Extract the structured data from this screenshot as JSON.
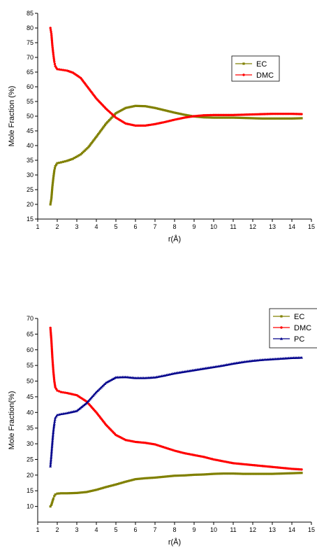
{
  "chart_data": [
    {
      "type": "line",
      "xlabel": "r(Å)",
      "ylabel": "Mole Fraction (%)",
      "xlim": [
        1,
        15
      ],
      "ylim": [
        15,
        85
      ],
      "xticks": [
        "1",
        "2",
        "3",
        "4",
        "5",
        "6",
        "7",
        "8",
        "9",
        "10",
        "11",
        "12",
        "13",
        "14",
        "15"
      ],
      "yticks": [
        "15",
        "20",
        "25",
        "30",
        "35",
        "40",
        "45",
        "50",
        "55",
        "60",
        "65",
        "70",
        "75",
        "80",
        "85"
      ],
      "legend": {
        "position": "top-right"
      },
      "series": [
        {
          "name": "EC",
          "color": "#808000",
          "marker": "square",
          "x": [
            1.65,
            1.7,
            1.75,
            1.8,
            1.85,
            1.9,
            2.0,
            2.2,
            2.5,
            2.8,
            3.2,
            3.6,
            4.0,
            4.5,
            5.0,
            5.5,
            6.0,
            6.5,
            7.0,
            7.5,
            8.0,
            8.5,
            9.0,
            9.5,
            10.0,
            10.5,
            11.0,
            11.5,
            12.0,
            12.5,
            13.0,
            13.5,
            14.0,
            14.5
          ],
          "y": [
            20,
            22,
            26,
            29,
            31.5,
            33,
            34,
            34.3,
            34.8,
            35.5,
            37,
            39.5,
            43,
            47.5,
            51,
            52.8,
            53.5,
            53.4,
            52.8,
            52,
            51.2,
            50.5,
            49.9,
            49.6,
            49.5,
            49.5,
            49.5,
            49.4,
            49.3,
            49.2,
            49.2,
            49.2,
            49.2,
            49.3
          ]
        },
        {
          "name": "DMC",
          "color": "#ff0000",
          "marker": "circle",
          "x": [
            1.65,
            1.7,
            1.75,
            1.8,
            1.85,
            1.9,
            2.0,
            2.2,
            2.5,
            2.8,
            3.2,
            3.6,
            4.0,
            4.5,
            5.0,
            5.5,
            6.0,
            6.5,
            7.0,
            7.5,
            8.0,
            8.5,
            9.0,
            9.5,
            10.0,
            10.5,
            11.0,
            11.5,
            12.0,
            12.5,
            13.0,
            13.5,
            14.0,
            14.5
          ],
          "y": [
            80,
            78,
            74,
            71,
            68.5,
            67,
            66,
            65.8,
            65.5,
            64.8,
            63,
            59.5,
            56,
            52.5,
            49.5,
            47.5,
            46.8,
            46.8,
            47.3,
            48,
            48.8,
            49.5,
            50,
            50.3,
            50.4,
            50.4,
            50.4,
            50.5,
            50.6,
            50.7,
            50.8,
            50.8,
            50.8,
            50.7
          ]
        }
      ]
    },
    {
      "type": "line",
      "xlabel": "r(Å)",
      "ylabel": "Mole Fraction(%)",
      "xlim": [
        1,
        15
      ],
      "ylim": [
        5,
        70
      ],
      "xticks": [
        "1",
        "2",
        "3",
        "4",
        "5",
        "6",
        "7",
        "8",
        "9",
        "10",
        "11",
        "12",
        "13",
        "14",
        "15"
      ],
      "yticks": [
        "10",
        "15",
        "20",
        "25",
        "30",
        "35",
        "40",
        "45",
        "50",
        "55",
        "60",
        "65",
        "70"
      ],
      "legend": {
        "position": "top-right"
      },
      "series": [
        {
          "name": "EC",
          "color": "#808000",
          "marker": "square",
          "x": [
            1.65,
            1.7,
            1.75,
            1.8,
            1.85,
            1.9,
            2.0,
            2.2,
            2.5,
            3.0,
            3.5,
            4.0,
            4.5,
            5.0,
            5.5,
            6.0,
            6.5,
            7.0,
            7.5,
            8.0,
            8.5,
            9.0,
            9.5,
            10.0,
            10.5,
            11.0,
            11.5,
            12.0,
            12.5,
            13.0,
            13.5,
            14.0,
            14.5
          ],
          "y": [
            10,
            10.5,
            11.5,
            12.5,
            13.3,
            13.8,
            14.1,
            14.2,
            14.2,
            14.3,
            14.6,
            15.3,
            16.2,
            17,
            17.9,
            18.7,
            19,
            19.2,
            19.5,
            19.8,
            19.9,
            20.1,
            20.2,
            20.4,
            20.5,
            20.5,
            20.4,
            20.4,
            20.4,
            20.4,
            20.5,
            20.6,
            20.7
          ]
        },
        {
          "name": "DMC",
          "color": "#ff0000",
          "marker": "circle",
          "x": [
            1.65,
            1.7,
            1.75,
            1.8,
            1.85,
            1.9,
            2.0,
            2.2,
            2.5,
            3.0,
            3.5,
            4.0,
            4.5,
            5.0,
            5.5,
            6.0,
            6.5,
            7.0,
            7.5,
            8.0,
            8.5,
            9.0,
            9.5,
            10.0,
            10.5,
            11.0,
            11.5,
            12.0,
            12.5,
            13.0,
            13.5,
            14.0,
            14.5
          ],
          "y": [
            67,
            63,
            57.5,
            53.2,
            50,
            48,
            47,
            46.5,
            46.2,
            45.5,
            43.5,
            40,
            36,
            32.8,
            31.2,
            30.6,
            30.3,
            29.8,
            28.8,
            27.8,
            27,
            26.4,
            25.8,
            25,
            24.4,
            23.8,
            23.5,
            23.2,
            22.9,
            22.6,
            22.3,
            22,
            21.8
          ]
        },
        {
          "name": "PC",
          "color": "#00008b",
          "marker": "triangle",
          "x": [
            1.65,
            1.7,
            1.75,
            1.8,
            1.85,
            1.9,
            2.0,
            2.2,
            2.5,
            3.0,
            3.5,
            4.0,
            4.5,
            5.0,
            5.5,
            6.0,
            6.5,
            7.0,
            7.5,
            8.0,
            8.5,
            9.0,
            9.5,
            10.0,
            10.5,
            11.0,
            11.5,
            12.0,
            12.5,
            13.0,
            13.5,
            14.0,
            14.5
          ],
          "y": [
            22.8,
            26.5,
            30.5,
            34,
            36.5,
            38.3,
            39.2,
            39.5,
            39.8,
            40.5,
            43,
            46.5,
            49.5,
            51.2,
            51.3,
            51,
            51,
            51.2,
            51.8,
            52.5,
            53,
            53.5,
            54,
            54.5,
            55,
            55.6,
            56.1,
            56.5,
            56.8,
            57,
            57.2,
            57.4,
            57.5
          ]
        }
      ]
    }
  ]
}
